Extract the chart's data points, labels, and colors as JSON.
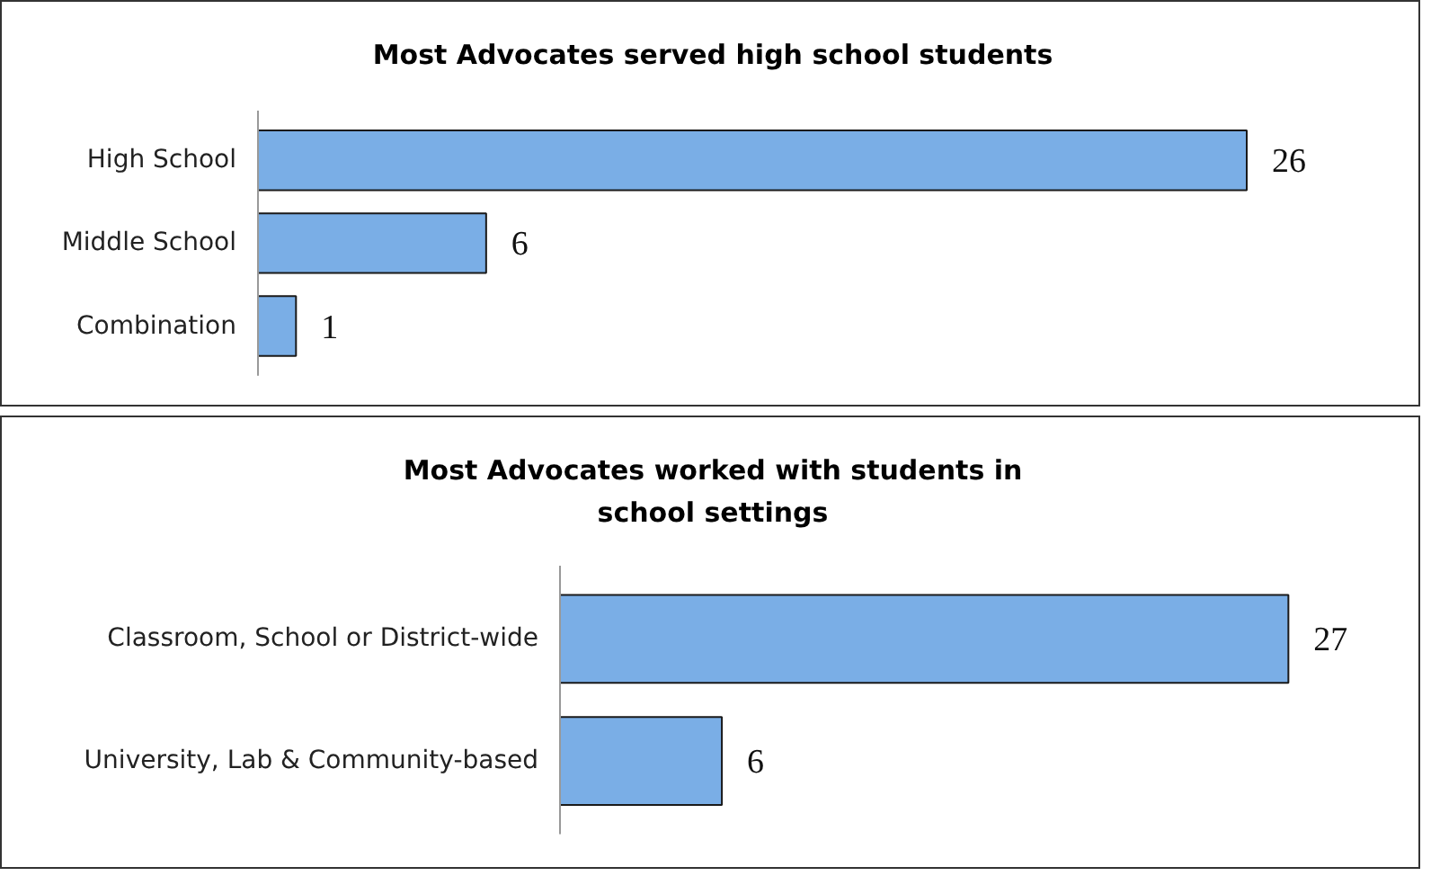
{
  "chart_data": [
    {
      "type": "bar",
      "orientation": "horizontal",
      "title": "Most Advocates served high school students",
      "categories": [
        "High School",
        "Middle School",
        "Combination"
      ],
      "values": [
        26,
        6,
        1
      ],
      "color": "#7aaee6",
      "data_labels": true
    },
    {
      "type": "bar",
      "orientation": "horizontal",
      "title": "Most Advocates worked with students in school settings",
      "categories": [
        "Classroom, School or District-wide",
        "University, Lab & Community-based"
      ],
      "values": [
        27,
        6
      ],
      "color": "#7aaee6",
      "data_labels": true
    }
  ]
}
